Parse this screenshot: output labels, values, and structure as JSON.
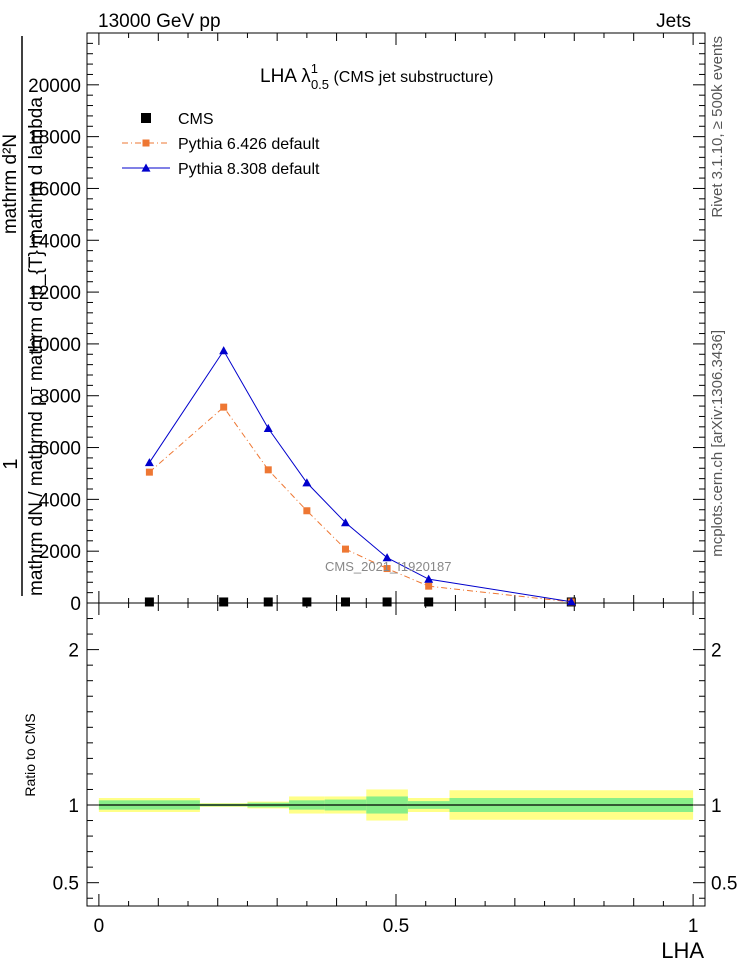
{
  "header": {
    "left": "13000 GeV pp",
    "right": "Jets"
  },
  "side_text": {
    "rivet": "Rivet 3.1.10, ≥ 500k events",
    "mcplots": "mcplots.cern.ch [arXiv:1306.3436]"
  },
  "chart_data": {
    "type": "line",
    "title": {
      "main": "LHA λ",
      "sup": "1",
      "sub": "0.5",
      "suffix": " (CMS jet substructure)"
    },
    "analysis_watermark": "CMS_2021_I1920187",
    "main_panel": {
      "ylabel": {
        "prefix": "1",
        "numerator": "mathrm d²N",
        "denominator_pre": "mathrm dN / mathrmd p",
        "denominator_sub": "T",
        "denominator_post": " mathrm d p_{T} mathrm d lambda"
      },
      "ylim": [
        0,
        22000
      ],
      "yticks": [
        {
          "value": 0,
          "label": "0"
        },
        {
          "value": 2000,
          "label": "2000"
        },
        {
          "value": 4000,
          "label": "4000"
        },
        {
          "value": 6000,
          "label": "6000"
        },
        {
          "value": 8000,
          "label": "8000"
        },
        {
          "value": 10000,
          "label": "10000"
        },
        {
          "value": 12000,
          "label": "12000"
        },
        {
          "value": 14000,
          "label": "14000"
        },
        {
          "value": 16000,
          "label": "16000"
        },
        {
          "value": 18000,
          "label": "18000"
        },
        {
          "value": 20000,
          "label": "20000"
        }
      ],
      "series": [
        {
          "name": "CMS",
          "color": "#000000",
          "marker": "square",
          "x": [
            0.085,
            0.21,
            0.285,
            0.35,
            0.415,
            0.485,
            0.555,
            0.795
          ],
          "y": [
            40,
            40,
            40,
            40,
            40,
            40,
            40,
            40
          ]
        },
        {
          "name": "Pythia 6.426 default",
          "color": "#ee7733",
          "marker": "square",
          "dash": "dashdot",
          "x": [
            0.085,
            0.21,
            0.285,
            0.35,
            0.415,
            0.485,
            0.555,
            0.795
          ],
          "y": [
            5050,
            7560,
            5140,
            3560,
            2080,
            1330,
            650,
            40
          ]
        },
        {
          "name": "Pythia 8.308 default",
          "color": "#0000cc",
          "marker": "triangle",
          "dash": "solid",
          "x": [
            0.085,
            0.21,
            0.285,
            0.35,
            0.415,
            0.485,
            0.555,
            0.795
          ],
          "y": [
            5420,
            9740,
            6740,
            4640,
            3100,
            1750,
            920,
            50
          ]
        }
      ]
    },
    "ratio_panel": {
      "ylabel": "Ratio to CMS",
      "ylim": [
        0.35,
        2.3
      ],
      "yticks": [
        {
          "value": 0.5,
          "label": "0.5"
        },
        {
          "value": 1,
          "label": "1"
        },
        {
          "value": 2,
          "label": "2"
        }
      ],
      "bands": {
        "inner_color": "#88ee88",
        "outer_color": "#ffff88",
        "bins": [
          {
            "lo": 0.0,
            "hi": 0.17,
            "inner": 0.03,
            "outer": 0.045
          },
          {
            "lo": 0.17,
            "hi": 0.25,
            "inner": 0.008,
            "outer": 0.012
          },
          {
            "lo": 0.25,
            "hi": 0.32,
            "inner": 0.015,
            "outer": 0.022
          },
          {
            "lo": 0.32,
            "hi": 0.38,
            "inner": 0.03,
            "outer": 0.055
          },
          {
            "lo": 0.38,
            "hi": 0.45,
            "inner": 0.035,
            "outer": 0.055
          },
          {
            "lo": 0.45,
            "hi": 0.52,
            "inner": 0.055,
            "outer": 0.1
          },
          {
            "lo": 0.52,
            "hi": 0.59,
            "inner": 0.025,
            "outer": 0.045
          },
          {
            "lo": 0.59,
            "hi": 1.0,
            "inner": 0.045,
            "outer": 0.095
          }
        ]
      }
    },
    "xaxis": {
      "label": "LHA",
      "xlim": [
        -0.02,
        1.02
      ],
      "ticks": [
        {
          "value": 0,
          "label": "0"
        },
        {
          "value": 0.5,
          "label": "0.5"
        },
        {
          "value": 1,
          "label": "1"
        }
      ]
    }
  }
}
